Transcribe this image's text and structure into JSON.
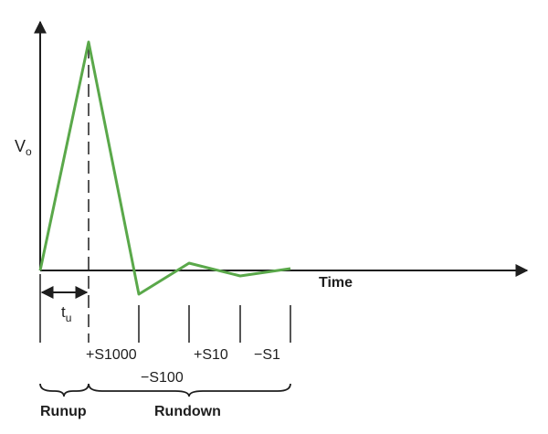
{
  "y_axis_label": {
    "main": "V",
    "subscript": "o"
  },
  "x_axis_label": "Time",
  "tu_label": {
    "main": "t",
    "subscript": "u"
  },
  "step_labels": [
    "+S1000",
    "−S100",
    "+S10",
    "−S1"
  ],
  "phase_labels": {
    "runup": "Runup",
    "rundown": "Rundown"
  },
  "colors": {
    "waveform": "#5aa84a",
    "ink": "#1e1e1e"
  }
}
